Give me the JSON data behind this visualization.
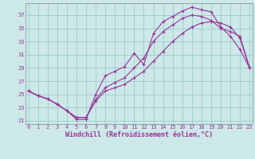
{
  "title": "Windchill (Refroidissement éolien,°C)",
  "bg_color": "#cce8e8",
  "grid_color": "#99cccc",
  "line_color": "#993399",
  "x_hours": [
    0,
    1,
    2,
    3,
    4,
    5,
    6,
    7,
    8,
    9,
    10,
    11,
    12,
    13,
    14,
    15,
    16,
    17,
    18,
    19,
    20,
    21,
    22,
    23
  ],
  "line1": [
    25.5,
    24.8,
    24.3,
    23.5,
    22.5,
    21.2,
    21.2,
    25.0,
    27.8,
    28.5,
    29.2,
    31.2,
    29.5,
    34.2,
    36.0,
    36.8,
    37.6,
    38.2,
    37.8,
    37.5,
    35.2,
    33.8,
    31.8,
    29.0
  ],
  "line2": [
    25.5,
    24.8,
    24.3,
    23.5,
    22.5,
    21.5,
    21.5,
    24.2,
    26.0,
    26.8,
    27.5,
    29.0,
    30.5,
    33.0,
    34.5,
    35.5,
    36.5,
    37.0,
    36.8,
    36.2,
    35.0,
    34.5,
    33.8,
    29.0
  ],
  "line3": [
    25.5,
    24.8,
    24.3,
    23.5,
    22.5,
    21.5,
    21.5,
    24.0,
    25.5,
    26.0,
    26.5,
    27.5,
    28.5,
    30.0,
    31.5,
    33.0,
    34.2,
    35.2,
    35.8,
    36.0,
    35.8,
    35.2,
    33.5,
    29.0
  ],
  "ylim": [
    20.5,
    38.8
  ],
  "yticks": [
    21,
    23,
    25,
    27,
    29,
    31,
    33,
    35,
    37
  ],
  "xlim": [
    -0.3,
    23.3
  ],
  "xticks": [
    0,
    1,
    2,
    3,
    4,
    5,
    6,
    7,
    8,
    9,
    10,
    11,
    12,
    13,
    14,
    15,
    16,
    17,
    18,
    19,
    20,
    21,
    22,
    23
  ],
  "tick_fontsize": 5.0,
  "xlabel_fontsize": 6.0
}
